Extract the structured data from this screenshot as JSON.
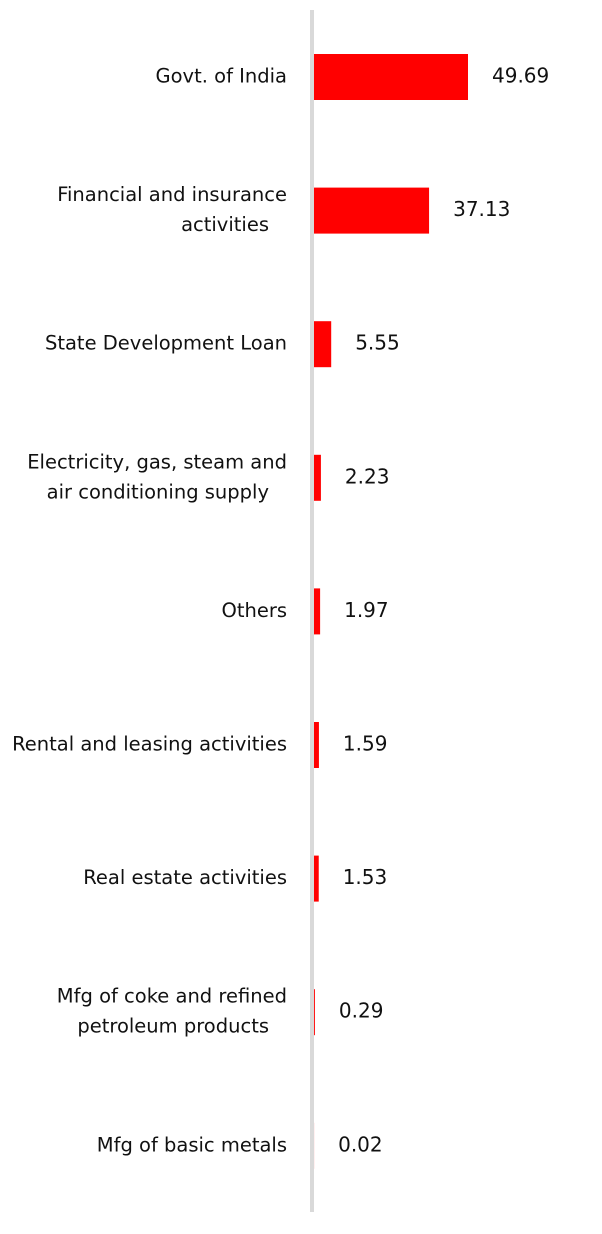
{
  "chart_data": {
    "type": "bar",
    "orientation": "horizontal",
    "title": "",
    "xlabel": "",
    "ylabel": "",
    "grid": false,
    "bar_color": "#ff0000",
    "axis_color": "#d9d9d9",
    "categories": [
      [
        "Govt. of India"
      ],
      [
        "Financial and insurance",
        "activities"
      ],
      [
        "State Development Loan"
      ],
      [
        "Electricity, gas, steam and",
        "air conditioning supply"
      ],
      [
        "Others"
      ],
      [
        "Rental and leasing activities"
      ],
      [
        "Real estate activities"
      ],
      [
        "Mfg of coke and refined",
        "petroleum products"
      ],
      [
        "Mfg of basic metals"
      ]
    ],
    "values": [
      49.69,
      37.13,
      5.55,
      2.23,
      1.97,
      1.59,
      1.53,
      0.29,
      0.02
    ],
    "value_labels": [
      "49.69",
      "37.13",
      "5.55",
      "2.23",
      "1.97",
      "1.59",
      "1.53",
      "0.29",
      "0.02"
    ]
  }
}
